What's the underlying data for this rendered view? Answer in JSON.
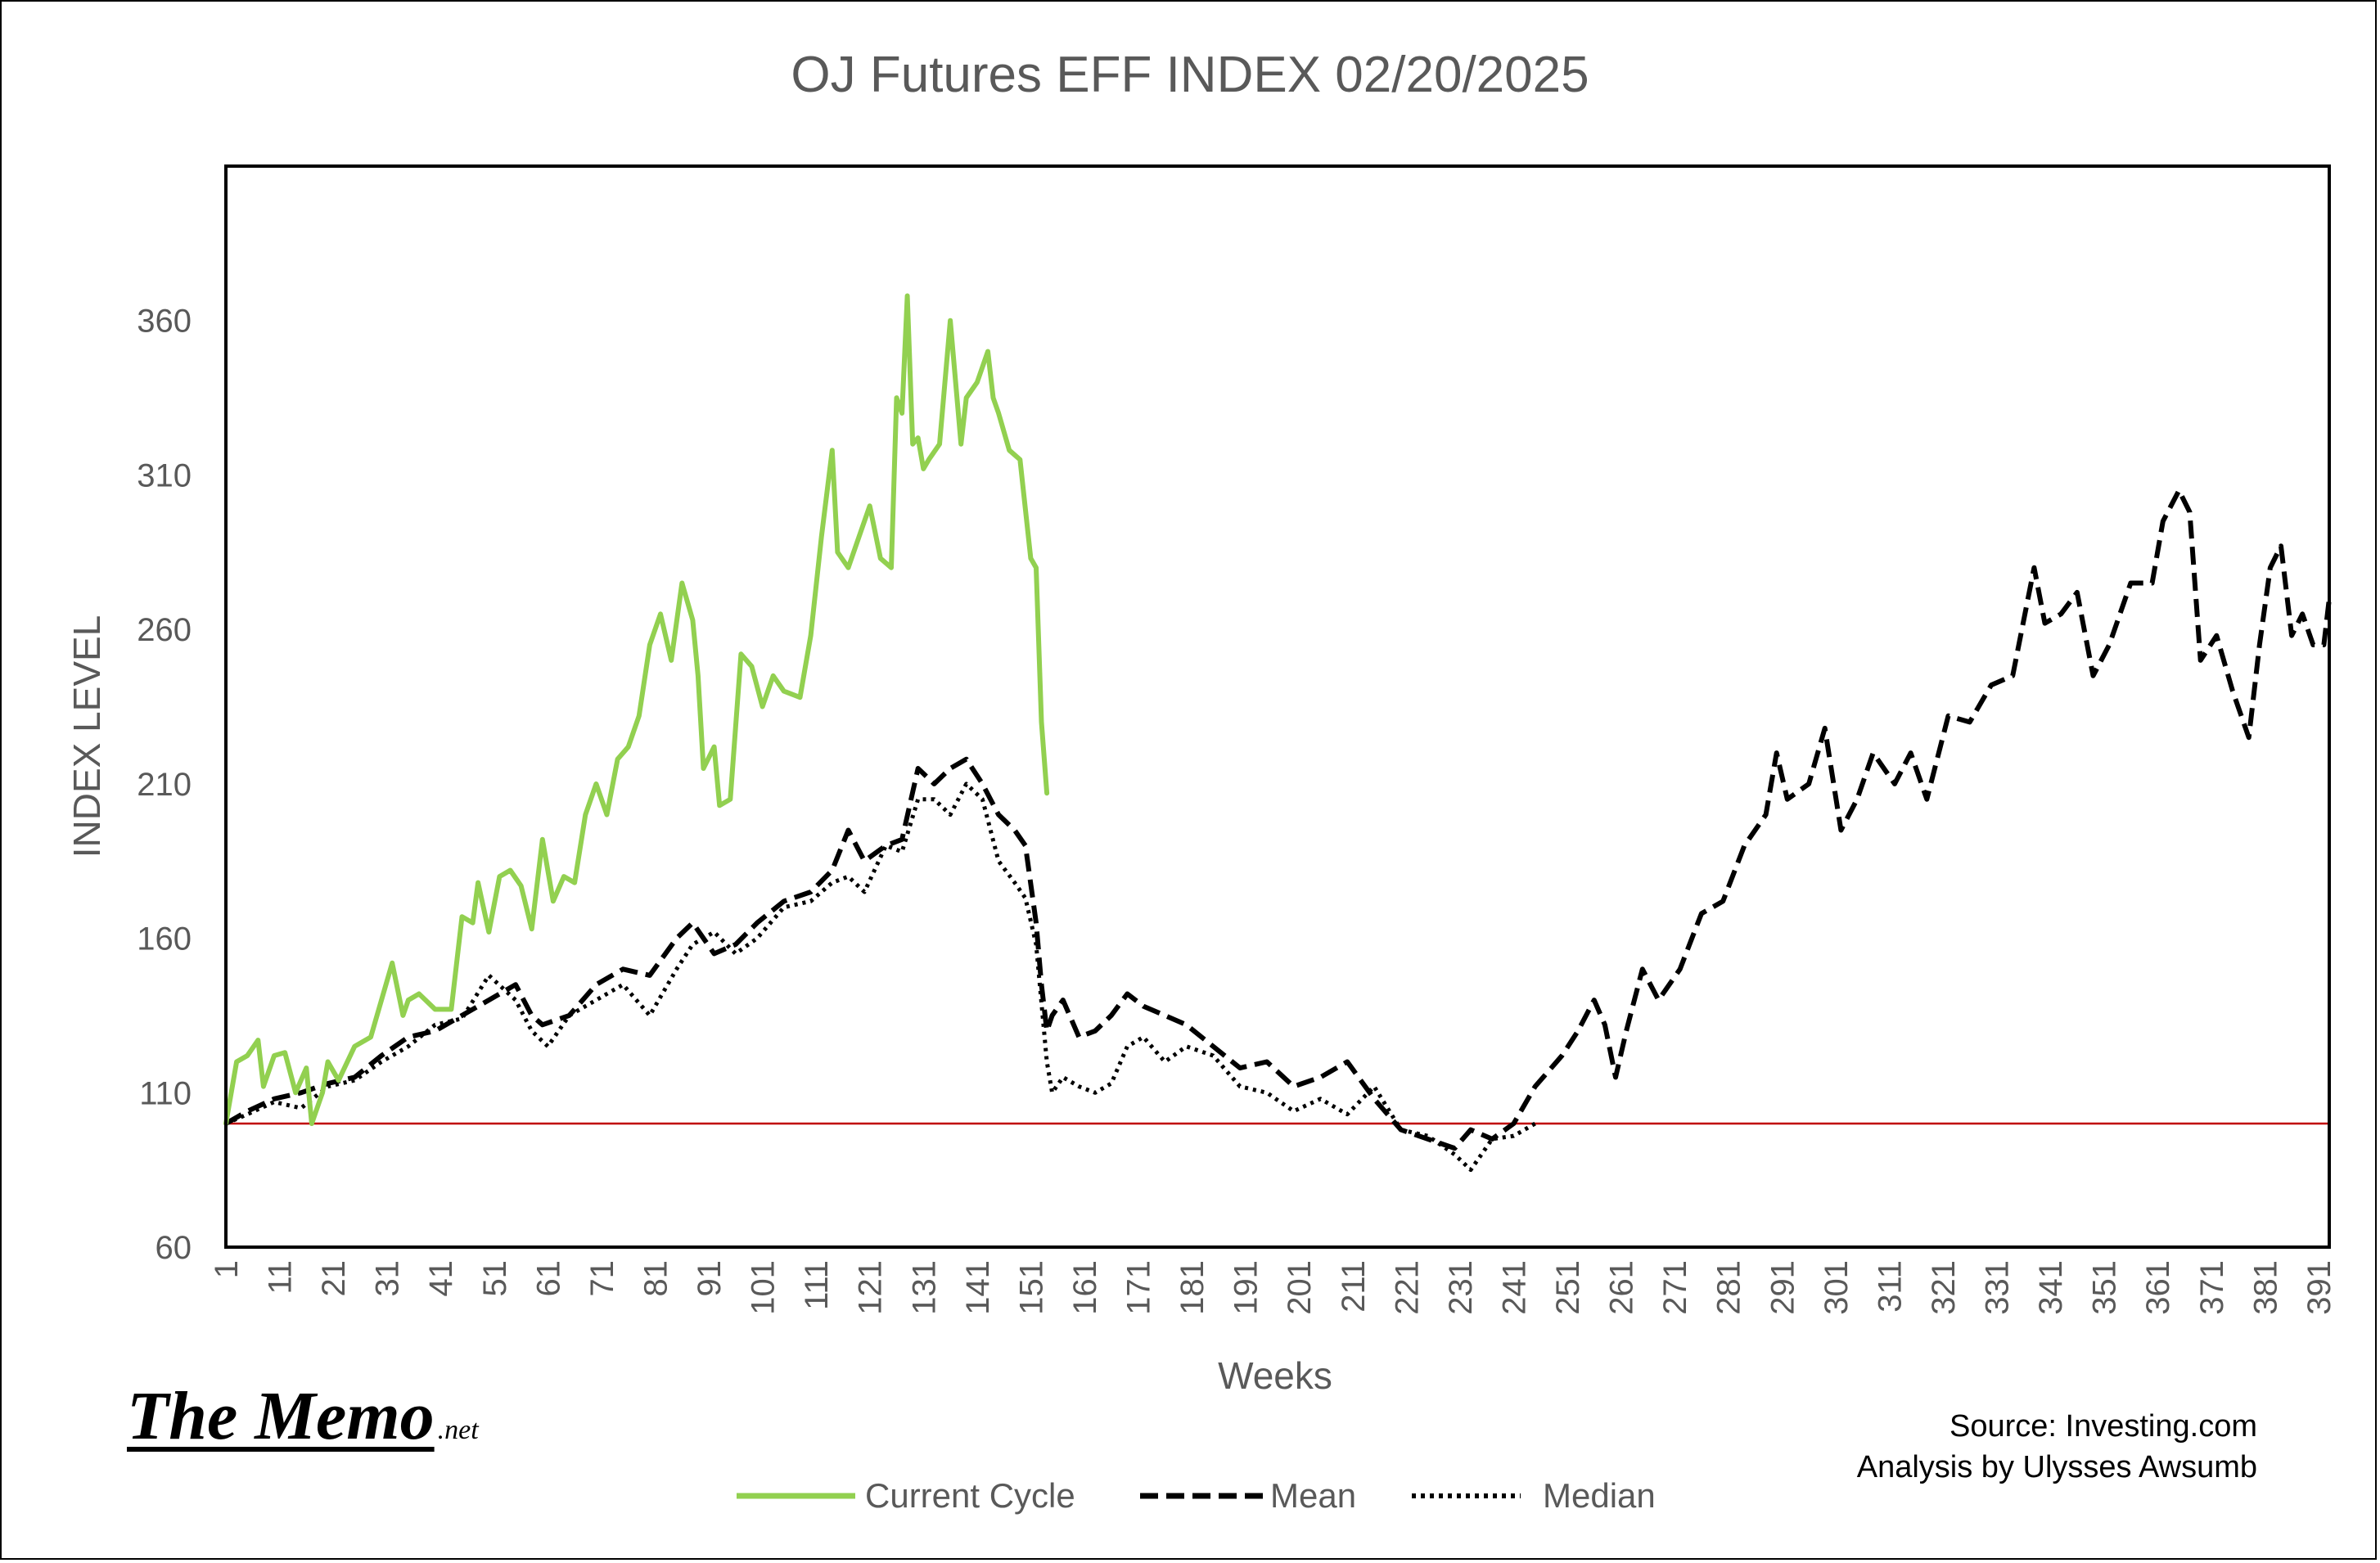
{
  "source_line": "Source: Investing.com",
  "analysis_line": "Analysis by Ulysses Awsumb",
  "brand": {
    "main": "The Memo",
    "suffix": ".net"
  },
  "colors": {
    "current": "#92D050",
    "mean": "#000000",
    "median": "#000000",
    "baseline": "#C00000",
    "text": "#595959"
  },
  "chart_data": {
    "type": "line",
    "title": "OJ Futures EFF INDEX 02/20/2025",
    "xlabel": "Weeks",
    "ylabel": "INDEX LEVEL",
    "xlim": [
      1,
      393
    ],
    "ylim": [
      60,
      410
    ],
    "yticks": [
      60,
      110,
      160,
      210,
      260,
      310,
      360
    ],
    "xticks": [
      1,
      11,
      21,
      31,
      41,
      51,
      61,
      71,
      81,
      91,
      101,
      111,
      121,
      131,
      141,
      151,
      161,
      171,
      181,
      191,
      201,
      211,
      221,
      231,
      241,
      251,
      261,
      271,
      281,
      291,
      301,
      311,
      321,
      331,
      341,
      351,
      361,
      371,
      381,
      391
    ],
    "legend_position": "bottom",
    "reference_line": {
      "y": 100,
      "color": "#C00000"
    },
    "series": [
      {
        "name": "Current Cycle",
        "color": "#92D050",
        "style": "solid",
        "x": [
          1,
          3,
          5,
          7,
          8,
          10,
          12,
          14,
          16,
          17,
          19,
          20,
          22,
          25,
          28,
          30,
          32,
          34,
          35,
          37,
          40,
          43,
          45,
          47,
          48,
          50,
          52,
          54,
          56,
          58,
          60,
          62,
          64,
          66,
          68,
          70,
          72,
          74,
          76,
          78,
          80,
          82,
          84,
          86,
          88,
          89,
          90,
          92,
          93,
          95,
          97,
          99,
          101,
          103,
          105,
          108,
          110,
          112,
          114,
          115,
          117,
          119,
          121,
          123,
          125,
          126,
          127,
          128,
          129,
          130,
          131,
          132,
          134,
          136,
          138,
          139,
          141,
          143,
          144,
          145,
          147,
          149,
          151,
          152,
          153,
          154
        ],
        "values": [
          100,
          120,
          122,
          127,
          112,
          122,
          123,
          110,
          118,
          100,
          110,
          120,
          114,
          125,
          128,
          140,
          152,
          135,
          140,
          142,
          137,
          137,
          167,
          165,
          178,
          162,
          180,
          182,
          177,
          163,
          192,
          172,
          180,
          178,
          200,
          210,
          200,
          218,
          222,
          232,
          255,
          265,
          250,
          275,
          263,
          245,
          215,
          222,
          203,
          205,
          252,
          248,
          235,
          245,
          240,
          238,
          258,
          290,
          318,
          285,
          280,
          290,
          300,
          283,
          280,
          335,
          330,
          368,
          320,
          322,
          312,
          315,
          320,
          360,
          320,
          335,
          340,
          350,
          335,
          330,
          318,
          315,
          283,
          280,
          230,
          207
        ]
      },
      {
        "name": "Mean",
        "color": "#000000",
        "style": "dashed",
        "x": [
          1,
          5,
          10,
          15,
          20,
          25,
          30,
          35,
          40,
          45,
          50,
          55,
          58,
          60,
          65,
          70,
          75,
          80,
          85,
          88,
          92,
          96,
          100,
          105,
          110,
          114,
          117,
          120,
          124,
          127,
          130,
          133,
          136,
          139,
          142,
          145,
          148,
          150,
          152,
          153,
          154,
          155,
          157,
          160,
          163,
          166,
          169,
          172,
          176,
          180,
          185,
          190,
          195,
          200,
          205,
          210,
          215,
          220,
          225,
          230,
          233,
          237,
          241,
          245,
          250,
          253,
          256,
          258,
          260,
          262,
          265,
          268,
          272,
          276,
          280,
          284,
          288,
          290,
          292,
          296,
          299,
          302,
          305,
          308,
          312,
          315,
          318,
          322,
          326,
          330,
          334,
          338,
          340,
          343,
          346,
          349,
          352,
          356,
          360,
          362,
          365,
          367,
          369,
          372,
          375,
          378,
          380,
          382,
          384,
          386,
          388,
          390,
          392,
          393
        ],
        "values": [
          100,
          104,
          108,
          110,
          113,
          115,
          122,
          128,
          130,
          135,
          140,
          145,
          135,
          132,
          135,
          145,
          150,
          148,
          160,
          165,
          155,
          158,
          165,
          172,
          175,
          182,
          195,
          185,
          190,
          192,
          215,
          210,
          215,
          218,
          210,
          200,
          195,
          190,
          165,
          145,
          130,
          135,
          140,
          128,
          130,
          135,
          142,
          138,
          135,
          132,
          125,
          118,
          120,
          112,
          115,
          120,
          108,
          98,
          95,
          92,
          98,
          95,
          100,
          112,
          122,
          130,
          140,
          132,
          115,
          130,
          150,
          140,
          150,
          168,
          172,
          190,
          200,
          220,
          205,
          210,
          228,
          195,
          205,
          220,
          210,
          220,
          205,
          232,
          230,
          242,
          245,
          280,
          262,
          265,
          272,
          245,
          255,
          275,
          275,
          295,
          305,
          298,
          250,
          258,
          240,
          225,
          255,
          280,
          287,
          258,
          265,
          255,
          255,
          270
        ]
      },
      {
        "name": "Median",
        "color": "#000000",
        "style": "dotted",
        "x": [
          1,
          5,
          10,
          15,
          20,
          25,
          30,
          35,
          40,
          45,
          50,
          55,
          58,
          61,
          65,
          70,
          75,
          80,
          85,
          88,
          92,
          96,
          100,
          105,
          110,
          114,
          117,
          120,
          124,
          127,
          130,
          133,
          136,
          139,
          142,
          145,
          148,
          150,
          152,
          154,
          155,
          157,
          160,
          163,
          166,
          169,
          172,
          176,
          180,
          185,
          190,
          195,
          200,
          205,
          210,
          215,
          220,
          225,
          230,
          233,
          237,
          241,
          245
        ],
        "values": [
          100,
          103,
          107,
          105,
          112,
          114,
          120,
          125,
          132,
          134,
          148,
          140,
          130,
          125,
          135,
          140,
          145,
          135,
          150,
          158,
          162,
          155,
          160,
          170,
          172,
          178,
          180,
          175,
          190,
          188,
          205,
          205,
          200,
          210,
          205,
          185,
          178,
          173,
          158,
          120,
          110,
          115,
          112,
          110,
          113,
          125,
          128,
          120,
          125,
          122,
          112,
          110,
          104,
          108,
          103,
          112,
          98,
          96,
          90,
          85,
          95,
          96,
          100
        ]
      }
    ]
  }
}
